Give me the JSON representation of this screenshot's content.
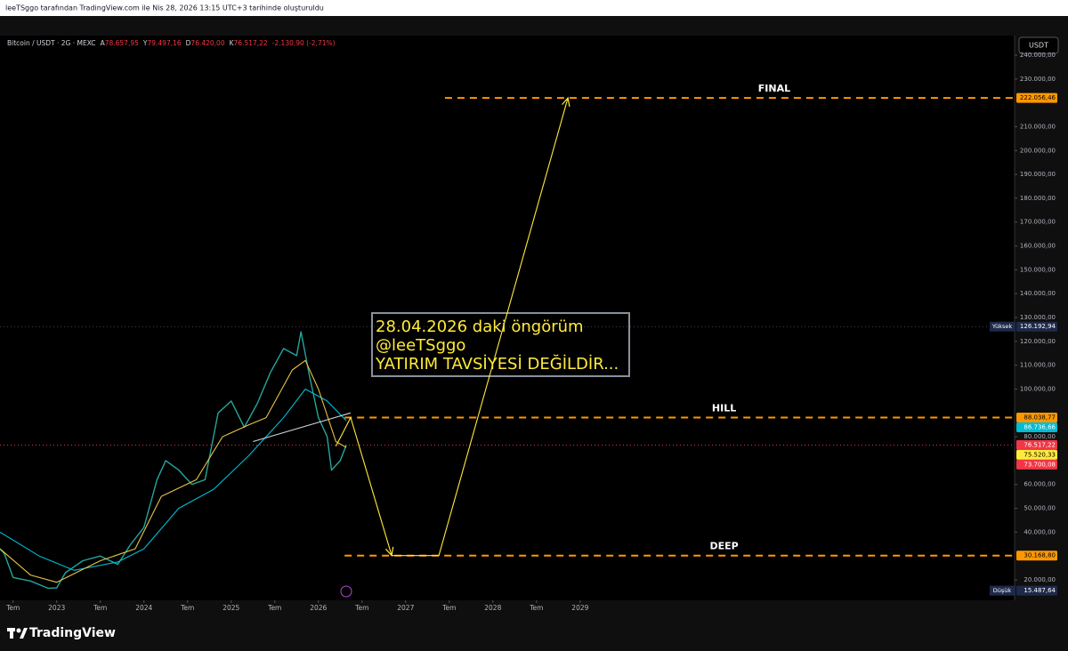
{
  "header": {
    "text": "leeTSggo tarafından TradingView.com ile Nis 28, 2026 13:15 UTC+3 tarihinde oluşturuldu"
  },
  "legend": {
    "symbol": "Bitcoin / USDT · 2G · MEXC",
    "items": [
      {
        "key": "A",
        "value": "78.657,95"
      },
      {
        "key": "Y",
        "value": "79.497,16"
      },
      {
        "key": "D",
        "value": "76.420,00"
      },
      {
        "key": "K",
        "value": "76.517,22"
      }
    ],
    "change": "-2.130,90 (-2,71%)"
  },
  "currency_button": "USDT",
  "annotation": {
    "lines": [
      "28.04.2026 daki öngörüm",
      "@leeTSggo",
      "YATIRIM TAVSİYESİ DEĞİLDİR..."
    ]
  },
  "footer": {
    "brand": "TradingView"
  },
  "chart_data": {
    "type": "line",
    "xlim": [
      2022.35,
      2033.98
    ],
    "ylim": [
      11424,
      248200
    ],
    "xticks": [
      {
        "value": 2022.5,
        "label": "Tem"
      },
      2023,
      {
        "value": 2023.5,
        "label": "Tem"
      },
      2024,
      {
        "value": 2024.5,
        "label": "Tem"
      },
      2025,
      {
        "value": 2025.5,
        "label": "Tem"
      },
      2026,
      {
        "value": 2026.5,
        "label": "Tem"
      },
      2027,
      {
        "value": 2027.5,
        "label": "Tem"
      },
      2028,
      {
        "value": 2028.5,
        "label": "Tem"
      },
      2029
    ],
    "yticks": [
      {
        "value": 20000,
        "label": "20.000,00"
      },
      {
        "value": 40000,
        "label": "40.000,00"
      },
      {
        "value": 50000,
        "label": "50.000,00"
      },
      {
        "value": 60000,
        "label": "60.000,00"
      },
      {
        "value": 80000,
        "label": "80.000,00"
      },
      {
        "value": 100000,
        "label": "100.000,00"
      },
      {
        "value": 110000,
        "label": "110.000,00"
      },
      {
        "value": 120000,
        "label": "120.000,00"
      },
      {
        "value": 130000,
        "label": "130.000,00"
      },
      {
        "value": 140000,
        "label": "140.000,00"
      },
      {
        "value": 150000,
        "label": "150.000,00"
      },
      {
        "value": 160000,
        "label": "160.000,00"
      },
      {
        "value": 170000,
        "label": "170.000,00"
      },
      {
        "value": 180000,
        "label": "180.000,00"
      },
      {
        "value": 190000,
        "label": "190.000,00"
      },
      {
        "value": 200000,
        "label": "200.000,00"
      },
      {
        "value": 210000,
        "label": "210.000,00"
      },
      {
        "value": 230000,
        "label": "230.000,00"
      },
      {
        "value": 240000,
        "label": "240.000,00"
      }
    ],
    "series": [
      {
        "color": "#26a69a",
        "x": [
          2022.35,
          2022.4,
          2022.5,
          2022.7,
          2022.9,
          2023.0,
          2023.1,
          2023.3,
          2023.5,
          2023.7,
          2023.85,
          2024.0,
          2024.15,
          2024.25,
          2024.4,
          2024.55,
          2024.7,
          2024.85,
          2025.0,
          2025.15,
          2025.3,
          2025.45,
          2025.6,
          2025.75,
          2025.8,
          2025.9,
          2026.0,
          2026.1,
          2026.15,
          2026.25,
          2026.32
        ],
        "values": [
          33000,
          31000,
          21000,
          19500,
          16500,
          16600,
          23000,
          28000,
          30000,
          26500,
          35000,
          42000,
          62000,
          70000,
          66000,
          60000,
          62000,
          90000,
          95000,
          84000,
          94000,
          107000,
          117000,
          114000,
          124000,
          105000,
          88000,
          80000,
          66000,
          70000,
          76517.22
        ]
      },
      {
        "color": "#00bcd4",
        "x": [
          2022.35,
          2022.8,
          2023.2,
          2023.7,
          2024.0,
          2024.4,
          2024.8,
          2025.2,
          2025.6,
          2025.85,
          2026.1,
          2026.32
        ],
        "values": [
          40000,
          30000,
          24000,
          27500,
          33000,
          50000,
          58000,
          72000,
          88000,
          100000,
          95000,
          86736.66
        ]
      },
      {
        "color": "#e8c547",
        "x": [
          2022.35,
          2022.7,
          2023.0,
          2023.5,
          2023.9,
          2024.2,
          2024.6,
          2024.9,
          2025.2,
          2025.4,
          2025.7,
          2025.85,
          2026.0,
          2026.2,
          2026.32
        ],
        "values": [
          33000,
          22000,
          19000,
          28000,
          33000,
          55000,
          62000,
          80000,
          85000,
          88000,
          108000,
          112000,
          100000,
          78000,
          75520.33
        ]
      },
      {
        "color": "#d1d4dc",
        "x": [
          2025.25,
          2026.37
        ],
        "values": [
          78000,
          90000
        ]
      },
      {
        "color": "#ffeb3b",
        "x": [
          2026.2,
          2026.37,
          2026.84,
          2027.38,
          2028.86
        ],
        "values": [
          76000,
          88038.77,
          30168.8,
          30168.8,
          222056.46
        ]
      }
    ],
    "levels": [
      {
        "label": "FINAL",
        "value": 222056.46,
        "value_label": "222.056,46",
        "x_start": 2027.45
      },
      {
        "label": "HILL",
        "value": 88038.77,
        "value_label": "88.038,77",
        "x_start": 2026.3
      },
      {
        "label": "DEEP",
        "value": 30168.8,
        "value_label": "30.168,80",
        "x_start": 2026.3
      }
    ],
    "level_color": "#ff9800",
    "price_labels": [
      {
        "prefix": "Yüksek",
        "value": 126192.94,
        "label": "126.192,94",
        "color": "#1e2a4a"
      },
      {
        "value": 86736.66,
        "label": "86.736,66",
        "color": "#00bcd4"
      },
      {
        "value": 76517.22,
        "label": "76.517,22",
        "color": "#f23645"
      },
      {
        "value": 75520.33,
        "label": "75.520,33",
        "color": "#ffeb3b"
      },
      {
        "value": 73700.08,
        "label": "73.700,08",
        "color": "#f23645"
      },
      {
        "prefix": "Düşük",
        "value": 15487.64,
        "label": "15.487,64",
        "color": "#1e2a4a"
      }
    ]
  }
}
